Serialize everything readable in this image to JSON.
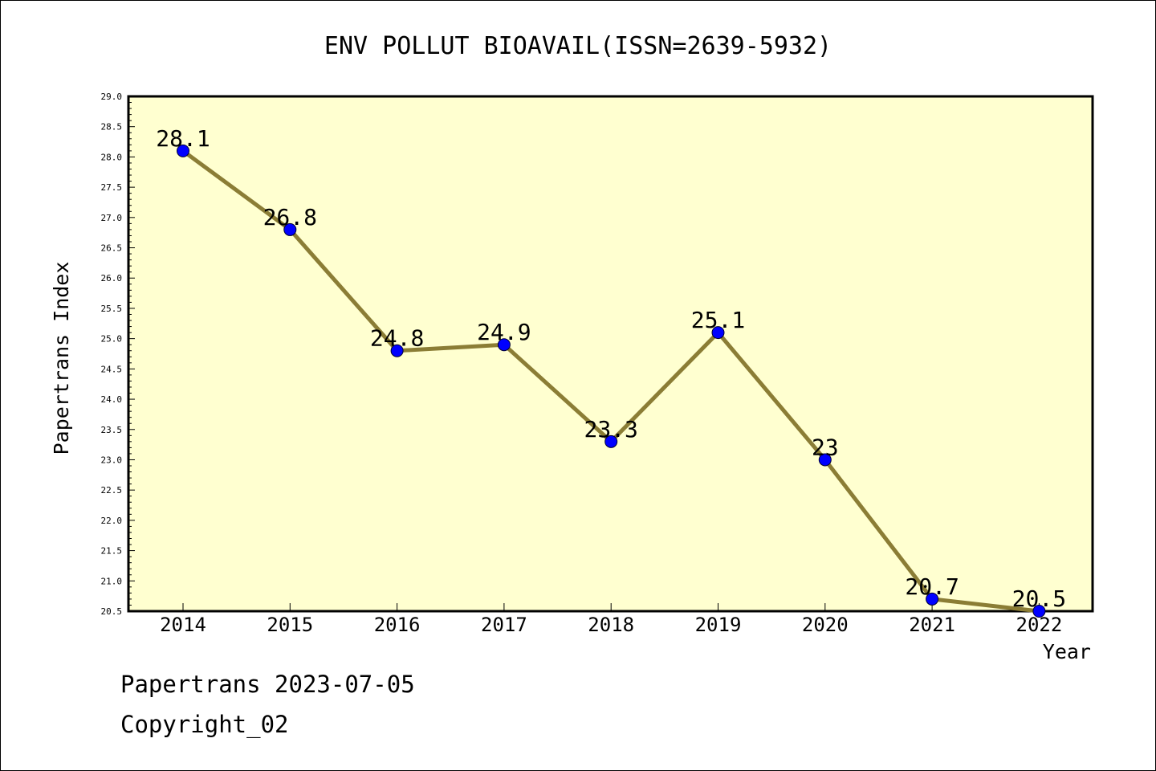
{
  "chart_data": {
    "type": "line",
    "title": "ENV POLLUT BIOAVAIL(ISSN=2639-5932)",
    "xlabel": "Year",
    "ylabel": "Papertrans Index",
    "categories": [
      "2014",
      "2015",
      "2016",
      "2017",
      "2018",
      "2019",
      "2020",
      "2021",
      "2022"
    ],
    "values": [
      28.1,
      26.8,
      24.8,
      24.9,
      23.3,
      25.1,
      23,
      20.7,
      20.5
    ],
    "data_labels": [
      "28.1",
      "26.8",
      "24.8",
      "24.9",
      "23.3",
      "25.1",
      "23",
      "20.7",
      "20.5"
    ],
    "ylim": [
      20.5,
      29.0
    ],
    "ytick_step": 0.5,
    "grid": false,
    "colors": {
      "plot_background": "#ffffd0",
      "line": "#8b7d35",
      "marker": "#0000ff"
    }
  },
  "footer": {
    "line1": "Papertrans 2023-07-05",
    "line2": "Copyright_02"
  }
}
